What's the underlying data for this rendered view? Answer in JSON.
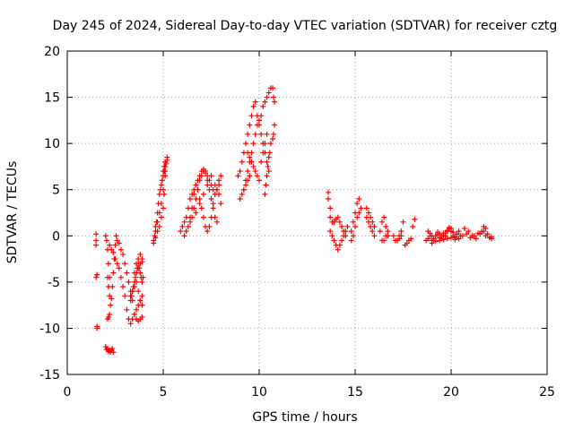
{
  "chart_data": {
    "type": "scatter",
    "title": "Day 245 of 2024, Sidereal Day-to-day VTEC variation (SDTVAR) for receiver cztg",
    "xlabel": "GPS time / hours",
    "ylabel": "SDTVAR / TECUs",
    "xlim": [
      0,
      25
    ],
    "ylim": [
      -15,
      20
    ],
    "xticks": [
      0,
      5,
      10,
      15,
      20,
      25
    ],
    "yticks": [
      -15,
      -10,
      -5,
      0,
      5,
      10,
      15,
      20
    ],
    "xtick_labels": [
      "0",
      "5",
      "10",
      "15",
      "20",
      "25"
    ],
    "ytick_labels": [
      "-15",
      "-10",
      "-5",
      "0",
      "5",
      "10",
      "15",
      "20"
    ],
    "grid": true,
    "marker": "+",
    "color": "#ff0000",
    "series": [
      {
        "name": "cztg",
        "x": [
          1.5,
          1.5,
          1.55,
          1.55,
          1.5,
          1.55,
          1.5,
          2.0,
          2.05,
          2.1,
          2.15,
          2.2,
          2.0,
          2.05,
          2.1,
          2.15,
          2.2,
          2.25,
          2.1,
          2.15,
          2.2,
          2.3,
          2.35,
          2.4,
          2.1,
          2.15,
          2.2,
          2.25,
          2.3,
          2.35,
          2.4,
          2.45,
          2.5,
          2.55,
          2.2,
          2.3,
          2.4,
          2.5,
          2.6,
          2.7,
          2.8,
          2.9,
          3.0,
          3.1,
          3.2,
          3.3,
          3.4,
          3.5,
          3.6,
          3.7,
          3.8,
          3.9,
          2.6,
          2.7,
          2.8,
          2.9,
          3.0,
          3.1,
          3.2,
          3.3,
          3.4,
          3.5,
          3.6,
          3.7,
          3.8,
          3.9,
          3.5,
          3.6,
          3.7,
          3.8,
          3.9,
          3.6,
          3.7,
          3.8,
          3.9,
          3.5,
          3.4,
          3.3,
          3.6,
          3.7,
          3.8,
          3.9,
          3.95,
          3.9,
          3.85,
          3.8,
          3.75,
          3.7,
          3.65,
          3.6,
          3.55,
          3.5,
          3.45,
          3.4,
          3.35,
          3.3,
          4.5,
          4.6,
          4.7,
          4.8,
          4.9,
          5.0,
          5.05,
          5.1,
          5.1,
          5.05,
          5.0,
          4.95,
          4.9,
          4.85,
          4.8,
          4.75,
          4.7,
          4.65,
          4.6,
          4.55,
          4.5,
          4.6,
          4.7,
          4.8,
          4.9,
          5.0,
          5.1,
          5.2,
          5.2,
          5.15,
          5.1,
          5.05,
          5.0,
          4.95,
          5.9,
          6.0,
          6.1,
          6.2,
          6.3,
          6.4,
          6.5,
          6.6,
          6.7,
          6.8,
          6.9,
          7.0,
          7.1,
          7.2,
          7.3,
          7.4,
          7.5,
          7.6,
          7.7,
          7.8,
          7.9,
          6.1,
          6.2,
          6.3,
          6.4,
          6.5,
          6.6,
          6.7,
          6.8,
          6.9,
          7.0,
          7.1,
          7.2,
          7.3,
          7.4,
          7.5,
          7.6,
          7.7,
          7.8,
          6.4,
          6.5,
          6.6,
          6.7,
          6.8,
          6.9,
          7.0,
          7.1,
          7.2,
          7.3,
          7.4,
          7.5,
          7.6,
          7.7,
          7.8,
          7.9,
          8.0,
          6.7,
          6.9,
          7.1,
          7.3,
          7.5,
          7.7,
          7.9,
          8.0,
          8.9,
          9.0,
          9.1,
          9.2,
          9.3,
          9.4,
          9.5,
          9.6,
          9.7,
          9.8,
          9.9,
          10.0,
          10.1,
          10.2,
          10.3,
          10.4,
          10.5,
          9.2,
          9.3,
          9.4,
          9.5,
          9.6,
          9.7,
          9.8,
          9.9,
          10.0,
          10.1,
          10.2,
          10.3,
          10.4,
          10.5,
          10.6,
          9.4,
          9.5,
          9.6,
          9.7,
          9.8,
          9.9,
          10.0,
          10.1,
          10.2,
          10.3,
          10.4,
          9.0,
          9.1,
          9.2,
          9.3,
          9.4,
          9.5,
          10.3,
          10.35,
          10.4,
          10.45,
          10.5,
          10.55,
          10.6,
          10.7,
          10.75,
          10.8,
          10.8,
          10.75,
          10.7,
          13.6,
          13.6,
          13.7,
          13.7,
          13.8,
          13.9,
          14.0,
          14.1,
          14.2,
          14.3,
          14.4,
          14.5,
          13.7,
          13.8,
          13.9,
          14.0,
          14.1,
          14.2,
          14.3,
          14.4,
          14.5,
          14.6,
          14.8,
          14.9,
          15.0,
          15.1,
          15.2,
          14.8,
          14.9,
          15.0,
          15.1,
          15.2,
          15.3,
          15.6,
          15.7,
          15.8,
          15.9,
          16.0,
          15.6,
          15.7,
          15.8,
          15.9,
          16.0,
          16.3,
          16.4,
          16.5,
          16.6,
          16.7,
          16.4,
          16.5,
          16.6,
          16.7,
          17.0,
          17.1,
          17.2,
          17.3,
          17.4,
          17.1,
          17.2,
          17.3,
          17.4,
          17.5,
          17.6,
          17.7,
          17.8,
          17.9,
          18.0,
          18.1,
          18.7,
          18.8,
          18.9,
          19.0,
          19.1,
          19.2,
          19.3,
          19.4,
          19.5,
          19.6,
          19.7,
          19.8,
          19.9,
          20.0,
          20.1,
          20.2,
          20.3,
          20.4,
          20.5,
          18.8,
          18.9,
          19.0,
          19.1,
          19.2,
          19.3,
          19.4,
          19.5,
          19.6,
          19.7,
          19.8,
          19.9,
          20.0,
          20.1,
          20.2,
          20.3,
          19.0,
          19.2,
          19.4,
          19.6,
          19.8,
          20.0,
          20.2,
          20.4,
          20.6,
          20.8,
          21.0,
          21.2,
          21.4,
          21.6,
          21.8,
          22.0,
          22.1,
          20.7,
          20.9,
          21.1,
          21.3,
          21.5,
          21.7,
          21.9,
          22.1,
          21.7,
          21.8
        ],
        "y": [
          -0.5,
          -1.0,
          -4.2,
          -10.0,
          0.2,
          -9.8,
          -4.5,
          0.0,
          -0.5,
          -1.5,
          -3.0,
          -4.5,
          -12.0,
          -12.3,
          -12.2,
          -12.5,
          -12.4,
          -12.6,
          -9.0,
          -8.8,
          -8.5,
          -12.4,
          -12.2,
          -12.6,
          -4.5,
          -5.5,
          -6.5,
          -7.5,
          -6.8,
          -5.5,
          -4.0,
          -2.5,
          -1.0,
          0.0,
          -1.0,
          -1.5,
          -1.8,
          -2.5,
          -3.0,
          -3.5,
          -4.5,
          -5.5,
          -6.5,
          -8.0,
          -9.0,
          -9.5,
          -9.0,
          -8.5,
          -8.0,
          -7.5,
          -7.0,
          -6.5,
          -0.5,
          -0.8,
          -1.5,
          -2.0,
          -3.0,
          -4.0,
          -5.0,
          -6.0,
          -7.0,
          -8.5,
          -9.0,
          -9.2,
          -9.0,
          -8.8,
          -4.0,
          -5.0,
          -6.0,
          -7.0,
          -7.5,
          -3.0,
          -2.5,
          -2.0,
          -2.5,
          -5.5,
          -6.0,
          -6.5,
          -4.0,
          -3.5,
          -3.0,
          -2.8,
          -4.5,
          -5.0,
          -4.5,
          -4.0,
          -3.5,
          -3.0,
          -3.5,
          -4.0,
          -4.5,
          -5.0,
          -5.5,
          -6.0,
          -6.5,
          -7.0,
          -0.8,
          -0.2,
          0.5,
          1.0,
          2.0,
          3.0,
          4.5,
          6.5,
          8.0,
          7.5,
          7.0,
          6.0,
          5.5,
          5.0,
          4.5,
          3.5,
          2.5,
          1.5,
          1.0,
          0.0,
          -0.5,
          0.5,
          1.5,
          2.5,
          3.5,
          5.0,
          7.0,
          8.5,
          8.2,
          7.8,
          7.5,
          7.0,
          6.5,
          6.0,
          0.5,
          1.0,
          1.5,
          2.0,
          3.0,
          4.0,
          4.5,
          5.0,
          5.5,
          5.0,
          4.0,
          3.0,
          2.0,
          1.0,
          0.5,
          1.0,
          2.0,
          3.5,
          4.5,
          5.0,
          5.5,
          0.0,
          0.5,
          1.0,
          2.0,
          3.0,
          4.5,
          5.5,
          6.0,
          6.5,
          7.0,
          7.2,
          6.8,
          6.0,
          5.0,
          4.0,
          3.0,
          2.0,
          1.5,
          1.5,
          2.0,
          3.0,
          4.0,
          5.0,
          6.0,
          6.5,
          7.0,
          7.0,
          6.5,
          6.0,
          5.5,
          5.0,
          4.5,
          5.0,
          6.0,
          6.5,
          2.5,
          3.5,
          4.5,
          5.5,
          6.5,
          5.5,
          4.5,
          3.5,
          6.5,
          7.0,
          8.0,
          9.0,
          10.0,
          11.0,
          12.0,
          13.0,
          14.0,
          14.5,
          13.0,
          12.0,
          11.0,
          10.0,
          9.0,
          8.0,
          7.0,
          5.0,
          6.0,
          7.0,
          8.0,
          9.0,
          10.0,
          11.0,
          12.0,
          12.5,
          13.0,
          14.0,
          14.5,
          15.0,
          15.5,
          16.0,
          9.0,
          8.5,
          8.0,
          7.5,
          7.0,
          6.5,
          6.0,
          8.0,
          9.0,
          10.0,
          11.0,
          4.0,
          4.5,
          5.0,
          5.5,
          6.0,
          6.5,
          4.5,
          5.5,
          6.5,
          7.5,
          8.5,
          9.0,
          10.0,
          10.5,
          11.0,
          12.0,
          14.5,
          15.0,
          16.0,
          4.7,
          4.0,
          3.0,
          2.0,
          1.5,
          1.5,
          1.8,
          2.0,
          1.5,
          1.0,
          0.5,
          0.0,
          0.5,
          0.0,
          -0.5,
          -1.0,
          -1.5,
          -1.0,
          -0.5,
          0.0,
          0.5,
          1.0,
          0.5,
          1.5,
          2.5,
          3.5,
          4.0,
          -0.5,
          0.0,
          1.0,
          2.0,
          2.5,
          3.0,
          3.0,
          2.5,
          2.0,
          1.5,
          1.0,
          2.0,
          1.5,
          1.0,
          0.5,
          0.0,
          0.5,
          1.5,
          2.0,
          1.0,
          0.0,
          -0.5,
          -0.5,
          0.0,
          0.5,
          0.0,
          -0.5,
          -0.5,
          0.0,
          0.5,
          -0.5,
          -0.5,
          -0.3,
          0.0,
          1.5,
          -1.0,
          -0.8,
          -0.5,
          -0.3,
          1.0,
          1.8,
          -0.5,
          -0.3,
          0.0,
          -0.5,
          -0.3,
          0.0,
          0.2,
          -0.2,
          0.0,
          0.3,
          0.0,
          0.5,
          0.8,
          0.5,
          0.0,
          -0.2,
          0.2,
          0.5,
          0.0,
          0.5,
          0.3,
          0.0,
          -0.5,
          0.0,
          0.4,
          0.2,
          -0.3,
          0.0,
          0.3,
          0.6,
          0.9,
          0.8,
          0.4,
          -0.1,
          0.2,
          -0.8,
          -0.6,
          -0.5,
          -0.4,
          -0.3,
          -0.2,
          -0.4,
          -0.3,
          0.0,
          0.2,
          -0.2,
          0.0,
          0.3,
          0.5,
          0.0,
          -0.2,
          -0.3,
          0.8,
          0.5,
          0.0,
          -0.3,
          0.2,
          0.5,
          0.2,
          -0.1,
          1.0,
          0.8
        ]
      }
    ]
  }
}
